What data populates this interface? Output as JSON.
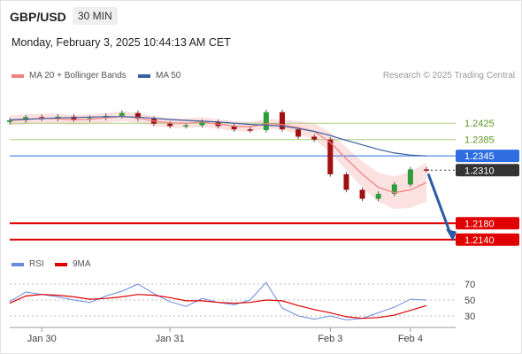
{
  "header": {
    "symbol": "GBP/USD",
    "timeframe": "30 MIN",
    "datetime": "Monday, February 3, 2025 10:44:13 AM CET"
  },
  "legend": {
    "ma20_label": "MA 20 + Bollinger Bands",
    "ma50_label": "MA 50",
    "source": "Research © 2025 Trading Central",
    "rsi_label": "RSI",
    "ma9_label": "9MA"
  },
  "colors": {
    "ma20": "#f08080",
    "ma50": "#3a5fa0",
    "bands": "#fbd4d4",
    "support": "#e00000",
    "resistance": "#a8d080",
    "current": "#2d6de0",
    "rsi": "#6a8ae0",
    "ma9": "#e00000",
    "arrow": "#2d5aa0"
  },
  "chart_data": [
    {
      "type": "line",
      "title": "GBP/USD 30 MIN",
      "x_ticks": [
        "Jan 30",
        "Jan 31",
        "Feb 3",
        "Feb 4"
      ],
      "price_levels": [
        {
          "value": 1.2425,
          "label": "1.2425",
          "kind": "resistance"
        },
        {
          "value": 1.2385,
          "label": "1.2385",
          "kind": "resistance"
        },
        {
          "value": 1.2345,
          "label": "1.2345",
          "kind": "pivot"
        },
        {
          "value": 1.231,
          "label": "1.2310",
          "kind": "last"
        },
        {
          "value": 1.218,
          "label": "1.2180",
          "kind": "support"
        },
        {
          "value": 1.214,
          "label": "1.2140",
          "kind": "support"
        }
      ],
      "series": [
        {
          "name": "MA 20 + Bollinger Bands",
          "values": [
            1.2432,
            1.2434,
            1.2437,
            1.2436,
            1.2433,
            1.2435,
            1.2438,
            1.2442,
            1.2438,
            1.243,
            1.2426,
            1.2425,
            1.2428,
            1.2423,
            1.2418,
            1.2416,
            1.2424,
            1.2422,
            1.2414,
            1.2405,
            1.2378,
            1.2338,
            1.23,
            1.2268,
            1.2255,
            1.2262,
            1.228
          ]
        },
        {
          "name": "MA 50",
          "values": [
            1.2433,
            1.2435,
            1.2436,
            1.2438,
            1.2439,
            1.244,
            1.2441,
            1.2441,
            1.244,
            1.2437,
            1.2434,
            1.2432,
            1.243,
            1.2428,
            1.2425,
            1.2422,
            1.242,
            1.2418,
            1.2412,
            1.2405,
            1.2395,
            1.2383,
            1.2372,
            1.2361,
            1.2352,
            1.2347,
            1.2345
          ]
        }
      ],
      "close_values": [
        1.2432,
        1.244,
        1.2436,
        1.2441,
        1.2434,
        1.2438,
        1.2443,
        1.245,
        1.2436,
        1.2424,
        1.2418,
        1.242,
        1.2428,
        1.2418,
        1.241,
        1.2408,
        1.2452,
        1.241,
        1.2392,
        1.2385,
        1.23,
        1.2262,
        1.224,
        1.2252,
        1.2275,
        1.2312,
        1.231
      ],
      "ylim": [
        1.212,
        1.251
      ]
    },
    {
      "type": "line",
      "title": "RSI",
      "x_ticks": [
        "Jan 30",
        "Jan 31",
        "Feb 3",
        "Feb 4"
      ],
      "y_ticks": [
        70,
        50,
        30
      ],
      "ylim": [
        20,
        80
      ],
      "series": [
        {
          "name": "RSI",
          "values": [
            48,
            60,
            57,
            54,
            50,
            47,
            55,
            61,
            70,
            58,
            48,
            42,
            52,
            47,
            44,
            50,
            72,
            40,
            30,
            26,
            30,
            25,
            27,
            34,
            41,
            51,
            50
          ]
        },
        {
          "name": "9MA",
          "values": [
            46,
            55,
            57,
            56,
            54,
            51,
            52,
            54,
            57,
            56,
            53,
            49,
            49,
            47,
            46,
            47,
            50,
            49,
            43,
            38,
            34,
            29,
            27,
            28,
            31,
            37,
            43
          ]
        }
      ]
    }
  ]
}
